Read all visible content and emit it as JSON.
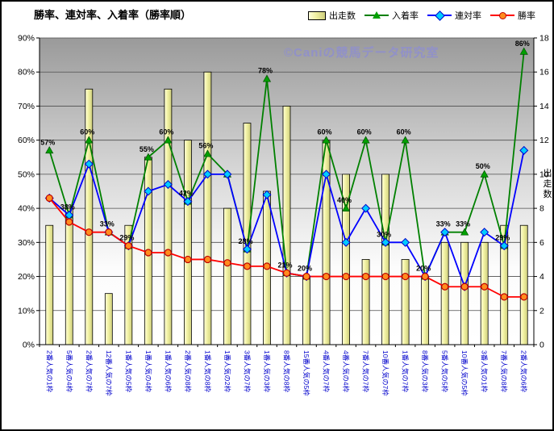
{
  "title": "勝率、連対率、入着率（勝率順）",
  "watermark": "©Caniの競馬データ研究室",
  "legend": {
    "items": [
      {
        "label": "出走数",
        "swatch": "yellow-bar"
      },
      {
        "label": "入着率",
        "swatch": "green-line-triangle"
      },
      {
        "label": "連対率",
        "swatch": "blue-line-diamond"
      },
      {
        "label": "勝率",
        "swatch": "red-line-circle"
      }
    ]
  },
  "colors": {
    "bar_fill": "#F1F1A2",
    "bar_border": "#000000",
    "placing_rate_line": "#008000",
    "placing_rate_marker": "#00A000",
    "exacta_rate_line": "#0000FF",
    "exacta_rate_marker_fill": "#00CCFF",
    "win_rate_line": "#FF0000",
    "win_rate_marker_fill": "#FF8C1E",
    "category_label": "#0000CC",
    "watermark": "#9191C8",
    "plot_gradient_top": "#9A9A9A",
    "plot_gradient_bottom": "#FFFFFF"
  },
  "chart_data": {
    "type": "bar",
    "subtype": "bar+line combo",
    "title": "勝率、連対率、入着率（勝率順）",
    "grid": true,
    "legend_position": "top",
    "categories": [
      "2番人気の1枠",
      "5番人気の4枠",
      "2番人気の7枠",
      "12番人気の7枠",
      "1番人気の5枠",
      "1番人気の4枠",
      "1番人気の6枠",
      "2番人気の8枠",
      "1番人気の8枠",
      "1番人気の2枠",
      "3番人気の7枠",
      "1番人気の3枠",
      "8番人気の8枠",
      "15番人気の5枠",
      "4番人気の7枠",
      "4番人気の4枠",
      "7番人気の7枠",
      "10番人気の7枠",
      "1番人気の7枠",
      "8番人気の3枠",
      "5番人気の5枠",
      "10番人気の5枠",
      "3番人気の1枠",
      "7番人気の8枠",
      "2番人気の6枠"
    ],
    "series": [
      {
        "name": "出走数",
        "type": "bar",
        "axis": "right",
        "values": [
          7,
          8,
          15,
          3,
          7,
          11,
          15,
          12,
          16,
          8,
          13,
          9,
          14,
          4,
          12,
          10,
          5,
          10,
          5,
          4,
          6,
          6,
          6,
          7,
          7
        ]
      },
      {
        "name": "入着率",
        "type": "line",
        "marker": "triangle",
        "axis": "left",
        "values": [
          57,
          38,
          60,
          33,
          29,
          55,
          60,
          42,
          56,
          50,
          28,
          78,
          21,
          20,
          60,
          40,
          60,
          30,
          60,
          20,
          33,
          33,
          50,
          29,
          86
        ]
      },
      {
        "name": "連対率",
        "type": "line",
        "marker": "diamond",
        "axis": "left",
        "values": [
          43,
          38,
          53,
          33,
          29,
          45,
          47,
          42,
          50,
          50,
          28,
          44,
          21,
          20,
          50,
          30,
          40,
          30,
          30,
          20,
          33,
          17,
          33,
          29,
          57
        ]
      },
      {
        "name": "勝率",
        "type": "line",
        "marker": "circle",
        "axis": "left",
        "values": [
          43,
          36,
          33,
          33,
          29,
          27,
          27,
          25,
          25,
          24,
          23,
          23,
          21,
          20,
          20,
          20,
          20,
          20,
          20,
          20,
          17,
          17,
          17,
          14,
          14
        ]
      }
    ],
    "data_labels": [
      "57%",
      "38%",
      "60%",
      "33%",
      "29%",
      "55%",
      "60%",
      "42%",
      "56%",
      null,
      "28%",
      "78%",
      "21%",
      "20%",
      "60%",
      "40%",
      "60%",
      "30%",
      "60%",
      "20%",
      "33%",
      "33%",
      "50%",
      "29%",
      "86%"
    ],
    "left_axis": {
      "min": 0,
      "max": 90,
      "step": 10,
      "format": "percent",
      "ticks": [
        "0%",
        "10%",
        "20%",
        "30%",
        "40%",
        "50%",
        "60%",
        "70%",
        "80%",
        "90%"
      ]
    },
    "right_axis": {
      "min": 0,
      "max": 18,
      "step": 2,
      "title": "出走数",
      "ticks": [
        "0",
        "2",
        "4",
        "6",
        "8",
        "10",
        "12",
        "14",
        "16",
        "18"
      ]
    }
  }
}
